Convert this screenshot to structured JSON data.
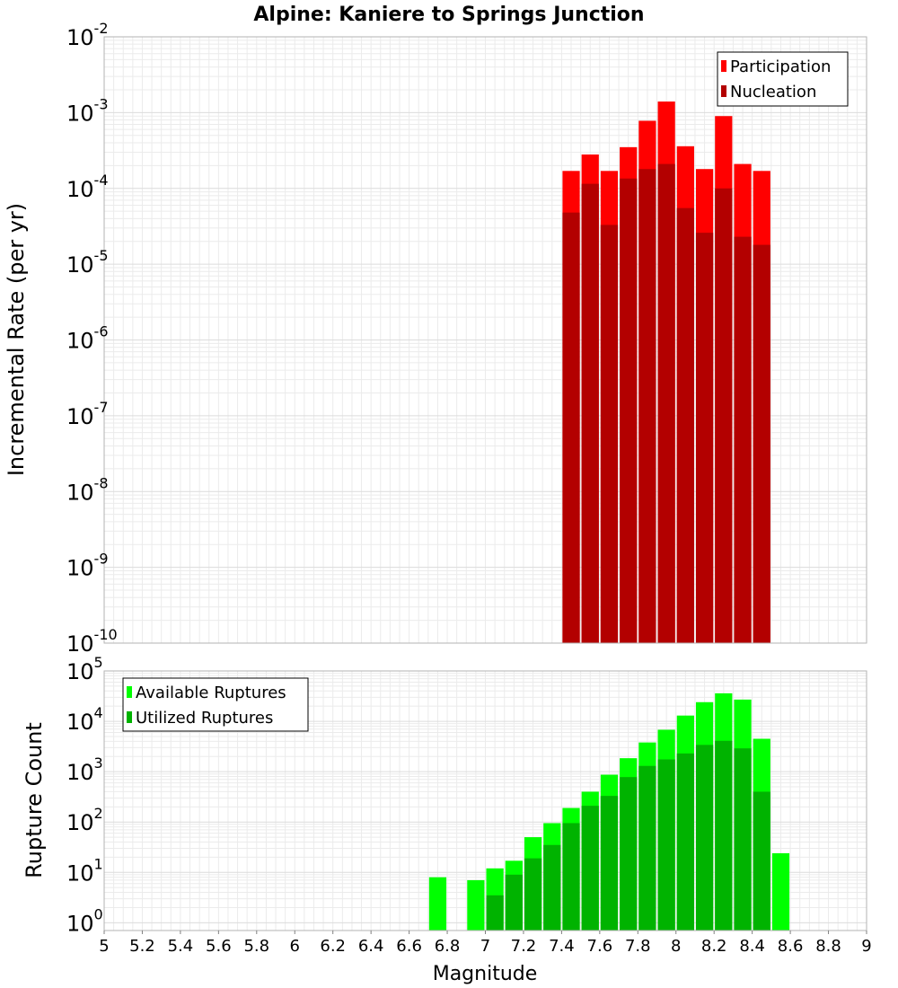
{
  "chart_data": [
    {
      "type": "bar",
      "title": "Alpine: Kaniere to Springs Junction",
      "ylabel": "Incremental Rate (per yr)",
      "yscale": "log",
      "ylim": [
        1e-10,
        0.01
      ],
      "xlim": [
        5,
        9
      ],
      "grid": true,
      "legend_position": "top-right",
      "bar_width": 0.1,
      "series": [
        {
          "name": "Participation",
          "color": "#ff0000",
          "x": [
            7.45,
            7.55,
            7.65,
            7.75,
            7.85,
            7.95,
            8.05,
            8.15,
            8.25,
            8.35,
            8.45
          ],
          "values": [
            0.00017,
            0.00028,
            0.00017,
            0.00035,
            0.00078,
            0.0014,
            0.00036,
            0.00018,
            0.0009,
            0.00021,
            0.00017
          ]
        },
        {
          "name": "Nucleation",
          "color": "#b30000",
          "x": [
            7.45,
            7.55,
            7.65,
            7.75,
            7.85,
            7.95,
            8.05,
            8.15,
            8.25,
            8.35,
            8.45
          ],
          "values": [
            4.8e-05,
            0.000115,
            3.3e-05,
            0.000135,
            0.00018,
            0.00021,
            5.5e-05,
            2.6e-05,
            0.0001,
            2.3e-05,
            1.8e-05
          ]
        }
      ]
    },
    {
      "type": "bar",
      "ylabel": "Rupture Count",
      "xlabel": "Magnitude",
      "yscale": "log",
      "ylim": [
        0.7,
        100000
      ],
      "xlim": [
        5,
        9
      ],
      "xticks": [
        "5",
        "5.2",
        "5.4",
        "5.6",
        "5.8",
        "6",
        "6.2",
        "6.4",
        "6.6",
        "6.8",
        "7",
        "7.2",
        "7.4",
        "7.6",
        "7.8",
        "8",
        "8.2",
        "8.4",
        "8.6",
        "8.8",
        "9"
      ],
      "grid": true,
      "legend_position": "top-left",
      "bar_width": 0.1,
      "series": [
        {
          "name": "Available Ruptures",
          "color": "#00ff00",
          "x": [
            6.75,
            6.95,
            7.05,
            7.15,
            7.25,
            7.35,
            7.45,
            7.55,
            7.65,
            7.75,
            7.85,
            7.95,
            8.05,
            8.15,
            8.25,
            8.35,
            8.45,
            8.55
          ],
          "values": [
            8,
            7,
            12,
            17,
            50,
            95,
            190,
            400,
            870,
            1850,
            3800,
            6800,
            13000,
            24000,
            36000,
            27000,
            4500,
            24
          ]
        },
        {
          "name": "Utilized Ruptures",
          "color": "#00b300",
          "x": [
            7.05,
            7.15,
            7.25,
            7.35,
            7.45,
            7.55,
            7.65,
            7.75,
            7.85,
            7.95,
            8.05,
            8.15,
            8.25,
            8.35,
            8.45
          ],
          "values": [
            3.5,
            9,
            19,
            35,
            95,
            210,
            330,
            780,
            1300,
            1750,
            2300,
            3400,
            4100,
            2900,
            400
          ]
        }
      ]
    }
  ]
}
